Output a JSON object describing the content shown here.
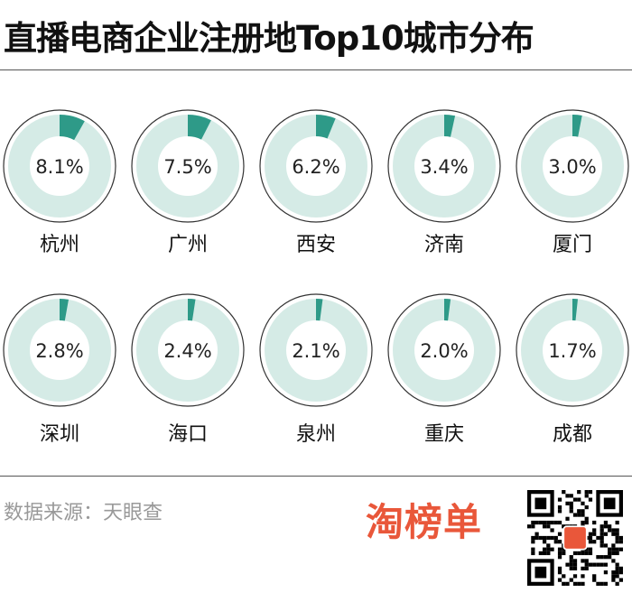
{
  "title": "直播电商企业注册地Top10城市分布",
  "source": "数据来源：天眼查",
  "logo": "淘榜单",
  "colors": {
    "filled": "#2e9a88",
    "remaining": "#d5ebe6",
    "outline": "#333333",
    "brand": "#e9573a"
  },
  "chart_data": {
    "type": "pie",
    "subtype": "donut-grid",
    "title": "直播电商企业注册地Top10城市分布",
    "categories": [
      "杭州",
      "广州",
      "西安",
      "济南",
      "厦门",
      "深圳",
      "海口",
      "泉州",
      "重庆",
      "成都"
    ],
    "values": [
      8.1,
      7.5,
      6.2,
      3.4,
      3.0,
      2.8,
      2.4,
      2.1,
      2.0,
      1.7
    ],
    "labels": [
      "8.1%",
      "7.5%",
      "6.2%",
      "3.4%",
      "3.0%",
      "2.8%",
      "2.4%",
      "2.1%",
      "2.0%",
      "1.7%"
    ],
    "unit": "%"
  }
}
